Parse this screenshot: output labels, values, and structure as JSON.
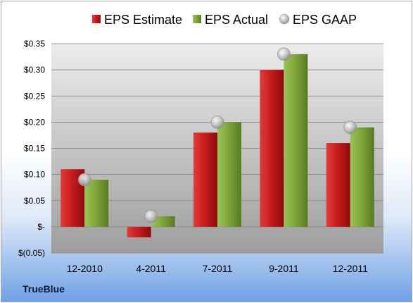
{
  "brand": "TrueBlue",
  "colors": {
    "estimate": "#c00000",
    "actual": "#77a033",
    "gaap": "#c0c0c0"
  },
  "chart_data": {
    "type": "bar",
    "categories": [
      "12-2010",
      "4-2011",
      "7-2011",
      "9-2011",
      "12-2011"
    ],
    "series": [
      {
        "name": "EPS Estimate",
        "kind": "bar",
        "values": [
          0.11,
          -0.02,
          0.18,
          0.3,
          0.16
        ]
      },
      {
        "name": "EPS Actual",
        "kind": "bar",
        "values": [
          0.09,
          0.02,
          0.2,
          0.33,
          0.19
        ]
      },
      {
        "name": "EPS GAAP",
        "kind": "marker",
        "values": [
          0.09,
          0.02,
          0.2,
          0.33,
          0.19
        ]
      }
    ],
    "ylim": [
      -0.05,
      0.35
    ],
    "yticks": [
      -0.05,
      0,
      0.05,
      0.1,
      0.15,
      0.2,
      0.25,
      0.3,
      0.35
    ],
    "ytick_labels": [
      "$(0.05)",
      "$-",
      "$0.05",
      "$0.10",
      "$0.15",
      "$0.20",
      "$0.25",
      "$0.30",
      "$0.35"
    ],
    "grid": true,
    "legend": "top"
  }
}
